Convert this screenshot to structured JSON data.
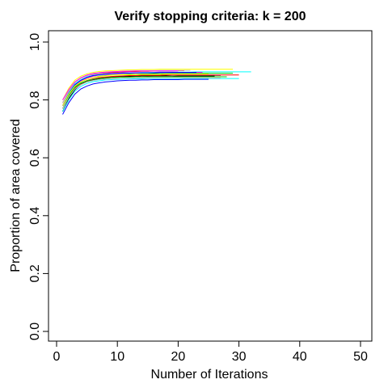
{
  "chart_data": {
    "type": "line",
    "title": "Verify stopping criteria: k = 200",
    "xlabel": "Number of Iterations",
    "ylabel": "Proportion of area covered",
    "xlim": [
      0,
      50
    ],
    "ylim": [
      0,
      1
    ],
    "x_ticks": [
      0,
      10,
      20,
      30,
      40,
      50
    ],
    "y_ticks": [
      0.0,
      0.2,
      0.4,
      0.6,
      0.8,
      1.0
    ],
    "x_tick_labels": [
      "0",
      "10",
      "20",
      "30",
      "40",
      "50"
    ],
    "y_tick_labels": [
      "0.0",
      "0.2",
      "0.4",
      "0.6",
      "0.8",
      "1.0"
    ],
    "grid": false,
    "legend": "none",
    "series_colors": [
      "#000000",
      "#ff0000",
      "#00cd00",
      "#0000ff",
      "#00ffff",
      "#ff00ff",
      "#ffff00",
      "#bebebe"
    ],
    "series": [
      {
        "values": [
          0.76,
          0.8,
          0.835,
          0.855,
          0.865,
          0.87,
          0.875,
          0.877,
          0.879,
          0.88,
          0.881,
          0.882,
          0.882,
          0.883,
          0.883,
          0.884,
          0.884,
          0.884,
          0.885,
          0.885,
          0.885,
          0.885,
          0.885,
          0.885,
          0.885,
          0.885,
          0.885
        ]
      },
      {
        "values": [
          0.79,
          0.83,
          0.86,
          0.875,
          0.884,
          0.889,
          0.892,
          0.894,
          0.895,
          0.896,
          0.897,
          0.898,
          0.898,
          0.899,
          0.899,
          0.9,
          0.9,
          0.9,
          0.9,
          0.901,
          0.901
        ]
      },
      {
        "values": [
          0.77,
          0.815,
          0.845,
          0.862,
          0.872,
          0.878,
          0.882,
          0.884,
          0.886,
          0.887,
          0.888,
          0.889,
          0.889,
          0.89,
          0.89,
          0.891,
          0.891,
          0.891,
          0.892,
          0.892,
          0.892,
          0.892,
          0.892,
          0.892,
          0.892,
          0.892,
          0.892,
          0.892,
          0.892
        ]
      },
      {
        "values": [
          0.75,
          0.79,
          0.82,
          0.838,
          0.848,
          0.855,
          0.859,
          0.862,
          0.864,
          0.866,
          0.867,
          0.868,
          0.868,
          0.869,
          0.869,
          0.87,
          0.87,
          0.87,
          0.87,
          0.87,
          0.871,
          0.871,
          0.871,
          0.871,
          0.871
        ]
      },
      {
        "values": [
          0.78,
          0.825,
          0.855,
          0.87,
          0.88,
          0.885,
          0.888,
          0.89,
          0.891,
          0.892,
          0.893,
          0.894,
          0.894,
          0.895,
          0.895,
          0.895,
          0.896,
          0.896,
          0.896,
          0.896,
          0.896,
          0.896,
          0.897,
          0.897,
          0.897,
          0.897,
          0.897,
          0.897,
          0.897,
          0.897,
          0.897,
          0.897
        ]
      },
      {
        "values": [
          0.78,
          0.82,
          0.85,
          0.866,
          0.876,
          0.882,
          0.886,
          0.888,
          0.89,
          0.891,
          0.892,
          0.893,
          0.893,
          0.894,
          0.894,
          0.894,
          0.895,
          0.895,
          0.895,
          0.895,
          0.895,
          0.895,
          0.895,
          0.895
        ]
      },
      {
        "values": [
          0.8,
          0.84,
          0.868,
          0.882,
          0.89,
          0.895,
          0.898,
          0.9,
          0.901,
          0.902,
          0.903,
          0.904,
          0.904,
          0.905,
          0.905,
          0.905,
          0.906,
          0.906,
          0.906,
          0.906,
          0.906,
          0.906,
          0.906,
          0.906,
          0.906,
          0.906,
          0.906,
          0.906,
          0.906
        ]
      },
      {
        "values": [
          0.79,
          0.83,
          0.86,
          0.875,
          0.884,
          0.89,
          0.893,
          0.896,
          0.897,
          0.898,
          0.899,
          0.9,
          0.9,
          0.901,
          0.901,
          0.901,
          0.902,
          0.902,
          0.902,
          0.902,
          0.902,
          0.902
        ]
      },
      {
        "values": [
          0.76,
          0.805,
          0.837,
          0.853,
          0.863,
          0.869,
          0.873,
          0.875,
          0.877,
          0.878,
          0.879,
          0.88,
          0.88,
          0.88,
          0.881,
          0.881,
          0.881,
          0.881,
          0.881,
          0.882,
          0.882,
          0.882,
          0.882,
          0.882,
          0.882,
          0.882
        ]
      },
      {
        "values": [
          0.77,
          0.81,
          0.84,
          0.857,
          0.867,
          0.873,
          0.877,
          0.879,
          0.881,
          0.882,
          0.883,
          0.884,
          0.884,
          0.885,
          0.885,
          0.885,
          0.885,
          0.886,
          0.886,
          0.886,
          0.886,
          0.886,
          0.886,
          0.886,
          0.886,
          0.886,
          0.886,
          0.886,
          0.886,
          0.886
        ]
      },
      {
        "values": [
          0.77,
          0.815,
          0.843,
          0.858,
          0.866,
          0.871,
          0.874,
          0.876,
          0.877,
          0.878,
          0.879,
          0.879,
          0.88,
          0.88,
          0.88,
          0.88,
          0.88,
          0.88,
          0.88,
          0.88,
          0.88,
          0.88,
          0.88,
          0.88,
          0.88,
          0.88,
          0.88,
          0.88
        ]
      },
      {
        "values": [
          0.78,
          0.822,
          0.852,
          0.868,
          0.878,
          0.884,
          0.887,
          0.889,
          0.891,
          0.892,
          0.893,
          0.893,
          0.894,
          0.894,
          0.894,
          0.894,
          0.895,
          0.895,
          0.895,
          0.895,
          0.895,
          0.895,
          0.895
        ]
      },
      {
        "values": [
          0.76,
          0.8,
          0.83,
          0.847,
          0.857,
          0.863,
          0.866,
          0.869,
          0.87,
          0.871,
          0.872,
          0.873,
          0.873,
          0.873,
          0.874,
          0.874,
          0.874,
          0.874,
          0.874,
          0.874,
          0.874,
          0.874,
          0.874,
          0.874,
          0.874,
          0.874,
          0.874,
          0.874,
          0.874,
          0.874
        ]
      },
      {
        "values": [
          0.8,
          0.835,
          0.862,
          0.877,
          0.886,
          0.891,
          0.894,
          0.896,
          0.897,
          0.898,
          0.899,
          0.899,
          0.9,
          0.9,
          0.9,
          0.9,
          0.9,
          0.9,
          0.9,
          0.9
        ]
      },
      {
        "values": [
          0.78,
          0.82,
          0.848,
          0.863,
          0.872,
          0.878,
          0.881,
          0.883,
          0.885,
          0.886,
          0.887,
          0.887,
          0.888,
          0.888,
          0.888,
          0.888,
          0.888,
          0.889,
          0.889,
          0.889,
          0.889,
          0.889,
          0.889,
          0.889,
          0.889
        ]
      },
      {
        "values": [
          0.77,
          0.81,
          0.838,
          0.853,
          0.862,
          0.867,
          0.87,
          0.872,
          0.873,
          0.874,
          0.875,
          0.875,
          0.876,
          0.876,
          0.876,
          0.876,
          0.876,
          0.876,
          0.876,
          0.876,
          0.876,
          0.876,
          0.876,
          0.876,
          0.876,
          0.876,
          0.876
        ]
      }
    ]
  }
}
